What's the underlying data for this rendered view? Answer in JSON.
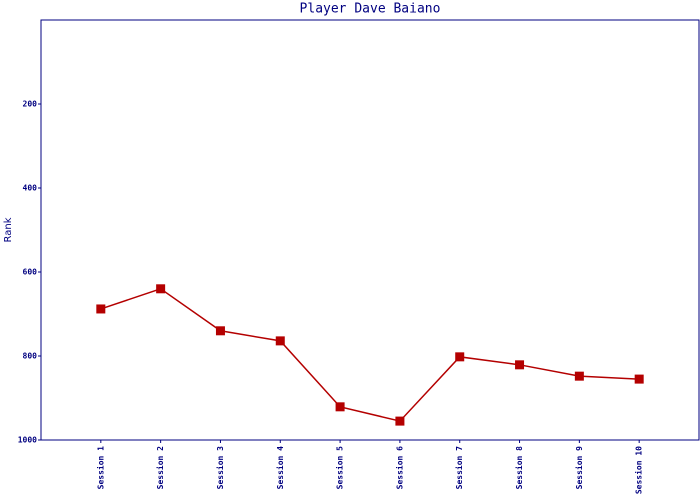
{
  "chart_data": {
    "type": "line",
    "title": "Player Dave Baiano",
    "y_label": "Rank",
    "categories": [
      "Session 1",
      "Session 2",
      "Session 3",
      "Session 4",
      "Session 5",
      "Session 6",
      "Session 7",
      "Session 8",
      "Session 9",
      "Session 10"
    ],
    "values": [
      688,
      640,
      740,
      764,
      921,
      955,
      802,
      821,
      848,
      855
    ],
    "color": "#b40000",
    "ylim": [
      0,
      1000
    ],
    "y_inverted": true,
    "yticks": [
      200,
      400,
      600,
      800,
      1000
    ]
  }
}
